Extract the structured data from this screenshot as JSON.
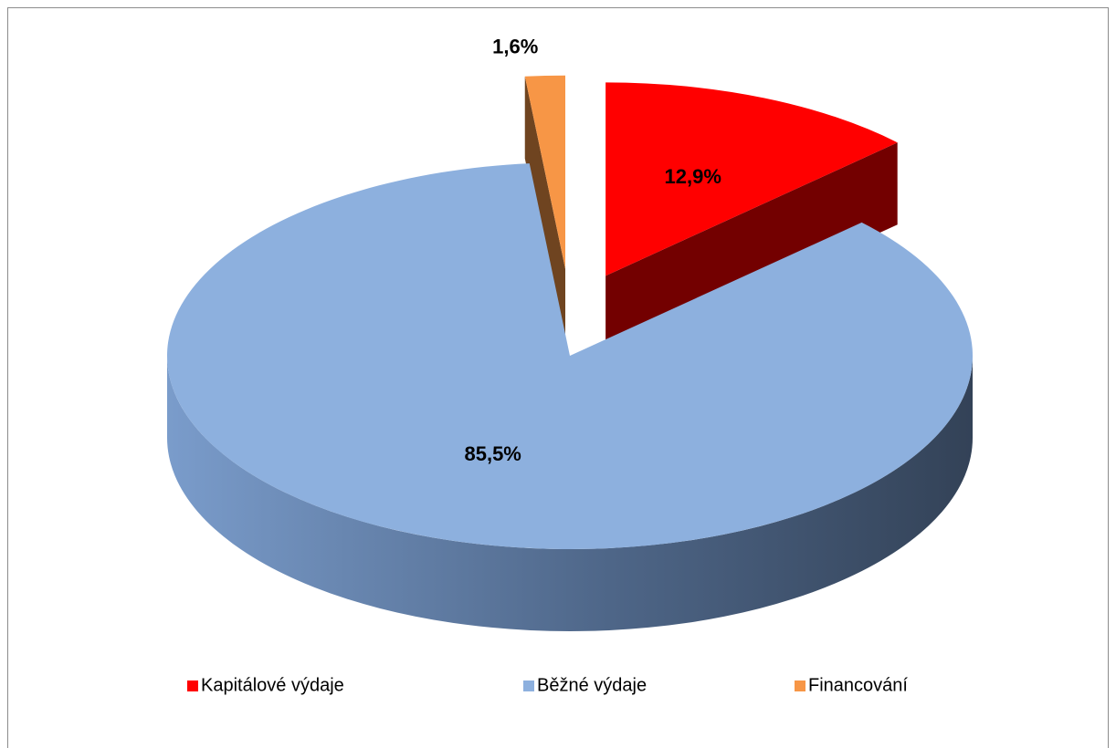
{
  "chart_data": {
    "type": "pie3d",
    "categories": [
      "Kapitálové výdaje",
      "Běžné výdaje",
      "Financování"
    ],
    "values": [
      12.9,
      85.5,
      1.6
    ],
    "value_labels": [
      "12,9%",
      "85,5%",
      "1,6%"
    ],
    "colors": [
      "#ff0000",
      "#8db0de",
      "#f79646"
    ],
    "legend": "bottom"
  }
}
